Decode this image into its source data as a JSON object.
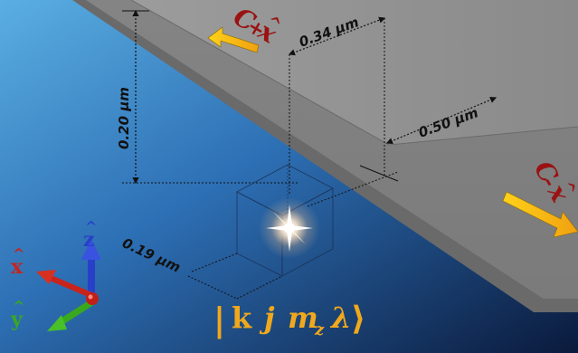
{
  "dimensions": {
    "width_top": "0.34 µm",
    "height": "0.20 µm",
    "width_right": "0.50 µm",
    "depth_emitter": "0.19 µm"
  },
  "labels": {
    "c_plus": {
      "main": "C",
      "sign": "+",
      "axis": "x",
      "hat": "^"
    },
    "c_minus": {
      "main": "C",
      "sign": "-",
      "axis": "x",
      "hat": "^"
    }
  },
  "axes": {
    "x": {
      "letter": "x",
      "hat": "^",
      "color": "#c8241c"
    },
    "y": {
      "letter": "y",
      "hat": "^",
      "color": "#3aa81e"
    },
    "z": {
      "letter": "z",
      "hat": "^",
      "color": "#2840c8"
    }
  },
  "state": {
    "bra": "|",
    "k": "k",
    "j": "j",
    "m": "m",
    "m_sub": "z",
    "lambda": "λ",
    "ket": "⟩"
  },
  "colors": {
    "arrow": "#f5c313",
    "guide": "#f0a81c",
    "waveguide": "#8e8e8e",
    "background_top": "#0a1834",
    "background_bottom": "#4aa0dc"
  }
}
